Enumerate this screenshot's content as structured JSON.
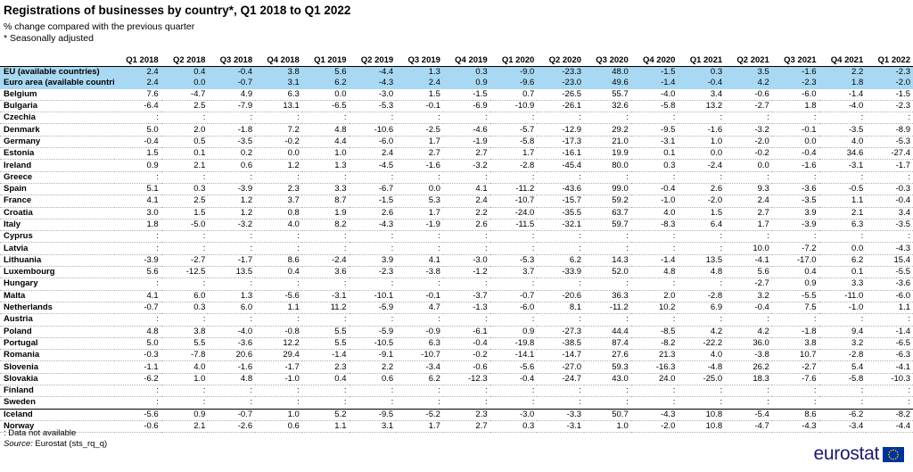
{
  "title": "Registrations of businesses by country*, Q1 2018 to Q1 2022",
  "subtitle": "% change compared with the previous quarter",
  "note": "* Seasonally adjusted",
  "columns": [
    "Q1 2018",
    "Q2 2018",
    "Q3 2018",
    "Q4 2018",
    "Q1 2019",
    "Q2 2019",
    "Q3 2019",
    "Q4 2019",
    "Q1 2020",
    "Q2 2020",
    "Q3 2020",
    "Q4 2020",
    "Q1 2021",
    "Q2 2021",
    "Q3 2021",
    "Q4 2021",
    "Q1 2022"
  ],
  "rows": [
    {
      "country": "EU (available countries)",
      "values": [
        "2.4",
        "0.4",
        "-0.4",
        "3.8",
        "5.6",
        "-4.4",
        "1.3",
        "0.3",
        "-9.0",
        "-23.3",
        "48.0",
        "-1.5",
        "0.3",
        "3.5",
        "-1.6",
        "2.2",
        "-2.3"
      ]
    },
    {
      "country": "Euro area (available countries)",
      "values": [
        "2.4",
        "0.0",
        "-0.7",
        "3.1",
        "6.2",
        "-4.3",
        "2.4",
        "0.9",
        "-9.6",
        "-23.0",
        "49.6",
        "-1.4",
        "-0.4",
        "4.2",
        "-2.3",
        "1.8",
        "-2.0"
      ]
    },
    {
      "country": "Belgium",
      "values": [
        "7.6",
        "-4.7",
        "4.9",
        "6.3",
        "0.0",
        "-3.0",
        "1.5",
        "-1.5",
        "0.7",
        "-26.5",
        "55.7",
        "-4.0",
        "3.4",
        "-0.6",
        "-6.0",
        "-1.4",
        "-1.5"
      ]
    },
    {
      "country": "Bulgaria",
      "values": [
        "-6.4",
        "2.5",
        "-7.9",
        "13.1",
        "-6.5",
        "-5.3",
        "-0.1",
        "-6.9",
        "-10.9",
        "-26.1",
        "32.6",
        "-5.8",
        "13.2",
        "-2.7",
        "1.8",
        "-4.0",
        "-2.3"
      ]
    },
    {
      "country": "Czechia",
      "values": [
        ":",
        ":",
        ":",
        ":",
        ":",
        ":",
        ":",
        ":",
        ":",
        ":",
        ":",
        ":",
        ":",
        ":",
        ":",
        ":",
        ":"
      ]
    },
    {
      "country": "Denmark",
      "values": [
        "5.0",
        "2.0",
        "-1.8",
        "7.2",
        "4.8",
        "-10.6",
        "-2.5",
        "-4.6",
        "-5.7",
        "-12.9",
        "29.2",
        "-9.5",
        "-1.6",
        "-3.2",
        "-0.1",
        "-3.5",
        "-8.9"
      ]
    },
    {
      "country": "Germany",
      "values": [
        "-0.4",
        "0.5",
        "-3.5",
        "-0.2",
        "4.4",
        "-6.0",
        "1.7",
        "-1.9",
        "-5.8",
        "-17.3",
        "21.0",
        "-3.1",
        "1.0",
        "-2.0",
        "0.0",
        "4.0",
        "-5.3"
      ]
    },
    {
      "country": "Estonia",
      "values": [
        "1.5",
        "0.1",
        "0.2",
        "0.0",
        "1.0",
        "2.4",
        "2.7",
        "2.7",
        "1.7",
        "-16.1",
        "19.9",
        "0.1",
        "0.0",
        "-0.2",
        "-0.4",
        "34.6",
        "-27.4"
      ]
    },
    {
      "country": "Ireland",
      "values": [
        "0.9",
        "2.1",
        "0.6",
        "1.2",
        "1.3",
        "-4.5",
        "-1.6",
        "-3.2",
        "-2.8",
        "-45.4",
        "80.0",
        "0.3",
        "-2.4",
        "0.0",
        "-1.6",
        "-3.1",
        "-1.7"
      ]
    },
    {
      "country": "Greece",
      "values": [
        ":",
        ":",
        ":",
        ":",
        ":",
        ":",
        ":",
        ":",
        ":",
        ":",
        ":",
        ":",
        ":",
        ":",
        ":",
        ":",
        ":"
      ]
    },
    {
      "country": "Spain",
      "values": [
        "5.1",
        "0.3",
        "-3.9",
        "2.3",
        "3.3",
        "-6.7",
        "0.0",
        "4.1",
        "-11.2",
        "-43.6",
        "99.0",
        "-0.4",
        "2.6",
        "9.3",
        "-3.6",
        "-0.5",
        "-0.3"
      ]
    },
    {
      "country": "France",
      "values": [
        "4.1",
        "2.5",
        "1.2",
        "3.7",
        "8.7",
        "-1.5",
        "5.3",
        "2.4",
        "-10.7",
        "-15.7",
        "59.2",
        "-1.0",
        "-2.0",
        "2.4",
        "-3.5",
        "1.1",
        "-0.4"
      ]
    },
    {
      "country": "Croatia",
      "values": [
        "3.0",
        "1.5",
        "1.2",
        "0.8",
        "1.9",
        "2.6",
        "1.7",
        "2.2",
        "-24.0",
        "-35.5",
        "63.7",
        "4.0",
        "1.5",
        "2.7",
        "3.9",
        "2.1",
        "3.4"
      ]
    },
    {
      "country": "Italy",
      "values": [
        "1.8",
        "-5.0",
        "-3.2",
        "4.0",
        "8.2",
        "-4.3",
        "-1.9",
        "2.6",
        "-11.5",
        "-32.1",
        "59.7",
        "-8.3",
        "6.4",
        "1.7",
        "-3.9",
        "6.3",
        "-3.5"
      ]
    },
    {
      "country": "Cyprus",
      "values": [
        ":",
        ":",
        ":",
        ":",
        ":",
        ":",
        ":",
        ":",
        ":",
        ":",
        ":",
        ":",
        ":",
        ":",
        ":",
        ":",
        ":"
      ]
    },
    {
      "country": "Latvia",
      "values": [
        ":",
        ":",
        ":",
        ":",
        ":",
        ":",
        ":",
        ":",
        ":",
        ":",
        ":",
        ":",
        ":",
        "10.0",
        "-7.2",
        "0.0",
        "-4.3"
      ]
    },
    {
      "country": "Lithuania",
      "values": [
        "-3.9",
        "-2.7",
        "-1.7",
        "8.6",
        "-2.4",
        "3.9",
        "4.1",
        "-3.0",
        "-5.3",
        "6.2",
        "14.3",
        "-1.4",
        "13.5",
        "-4.1",
        "-17.0",
        "6.2",
        "15.4"
      ]
    },
    {
      "country": "Luxembourg",
      "values": [
        "5.6",
        "-12.5",
        "13.5",
        "0.4",
        "3.6",
        "-2.3",
        "-3.8",
        "-1.2",
        "3.7",
        "-33.9",
        "52.0",
        "4.8",
        "4.8",
        "5.6",
        "0.4",
        "0.1",
        "-5.5"
      ]
    },
    {
      "country": "Hungary",
      "values": [
        ":",
        ":",
        ":",
        ":",
        ":",
        ":",
        ":",
        ":",
        ":",
        ":",
        ":",
        ":",
        ":",
        "-2.7",
        "0.9",
        "3.3",
        "-3.6"
      ]
    },
    {
      "country": "Malta",
      "values": [
        "4.1",
        "6.0",
        "1.3",
        "-5.6",
        "-3.1",
        "-10.1",
        "-0.1",
        "-3.7",
        "-0.7",
        "-20.6",
        "36.3",
        "2.0",
        "-2.8",
        "3.2",
        "-5.5",
        "-11.0",
        "-6.0"
      ]
    },
    {
      "country": "Netherlands",
      "values": [
        "-0.7",
        "0.3",
        "6.0",
        "1.1",
        "11.2",
        "-5.9",
        "4.7",
        "-1.3",
        "-6.0",
        "8.1",
        "-11.2",
        "10.2",
        "6.9",
        "-0.4",
        "7.5",
        "-1.0",
        "1.1"
      ]
    },
    {
      "country": "Austria",
      "values": [
        ":",
        ":",
        ":",
        ":",
        ":",
        ":",
        ":",
        ":",
        ":",
        ":",
        ":",
        ":",
        ":",
        ":",
        ":",
        ":",
        ":"
      ]
    },
    {
      "country": "Poland",
      "values": [
        "4.8",
        "3.8",
        "-4.0",
        "-0.8",
        "5.5",
        "-5.9",
        "-0.9",
        "-6.1",
        "0.9",
        "-27.3",
        "44.4",
        "-8.5",
        "4.2",
        "4.2",
        "-1.8",
        "9.4",
        "-1.4"
      ]
    },
    {
      "country": "Portugal",
      "values": [
        "5.0",
        "5.5",
        "-3.6",
        "12.2",
        "5.5",
        "-10.5",
        "6.3",
        "-0.4",
        "-19.8",
        "-38.5",
        "87.4",
        "-8.2",
        "-22.2",
        "36.0",
        "3.8",
        "3.2",
        "-6.5"
      ]
    },
    {
      "country": "Romania",
      "values": [
        "-0.3",
        "-7.8",
        "20.6",
        "29.4",
        "-1.4",
        "-9.1",
        "-10.7",
        "-0.2",
        "-14.1",
        "-14.7",
        "27.6",
        "21.3",
        "4.0",
        "-3.8",
        "10.7",
        "-2.8",
        "-6.3"
      ]
    },
    {
      "country": "Slovenia",
      "values": [
        "-1.1",
        "4.0",
        "-1.6",
        "-1.7",
        "2.3",
        "2.2",
        "-3.4",
        "-0.6",
        "-5.6",
        "-27.0",
        "59.3",
        "-16.3",
        "-4.8",
        "26.2",
        "-2.7",
        "5.4",
        "-4.1"
      ]
    },
    {
      "country": "Slovakia",
      "values": [
        "-6.2",
        "1.0",
        "4.8",
        "-1.0",
        "0.4",
        "0.6",
        "6.2",
        "-12.3",
        "-0.4",
        "-24.7",
        "43.0",
        "24.0",
        "-25.0",
        "18.3",
        "-7.6",
        "-5.8",
        "-10.3"
      ]
    },
    {
      "country": "Finland",
      "values": [
        ":",
        ":",
        ":",
        ":",
        ":",
        ":",
        ":",
        ":",
        ":",
        ":",
        ":",
        ":",
        ":",
        ":",
        ":",
        ":",
        ":"
      ]
    },
    {
      "country": "Sweden",
      "values": [
        ":",
        ":",
        ":",
        ":",
        ":",
        ":",
        ":",
        ":",
        ":",
        ":",
        ":",
        ":",
        ":",
        ":",
        ":",
        ":",
        ":"
      ]
    },
    {
      "country": "Iceland",
      "values": [
        "-5.6",
        "0.9",
        "-0.7",
        "1.0",
        "5.2",
        "-9.5",
        "-5.2",
        "2.3",
        "-3.0",
        "-3.3",
        "50.7",
        "-4.3",
        "10.8",
        "-5.4",
        "8.6",
        "-6.2",
        "-8.2"
      ]
    },
    {
      "country": "Norway",
      "values": [
        "-0.6",
        "2.1",
        "-2.6",
        "0.6",
        "1.1",
        "3.1",
        "1.7",
        "2.7",
        "0.3",
        "-3.1",
        "1.0",
        "-2.0",
        "10.8",
        "-4.7",
        "-4.3",
        "-3.4",
        "-4.4"
      ]
    }
  ],
  "footnotes": {
    "not_available": ":   Data not available",
    "source_label": "Source:",
    "source_text": " Eurostat (sts_rq_q)"
  },
  "logo": {
    "text": "eurostat",
    "flag_color": "#003399",
    "star_color": "#ffcc00"
  },
  "colors": {
    "aggregate_row_bg": "#a9d9f2"
  }
}
